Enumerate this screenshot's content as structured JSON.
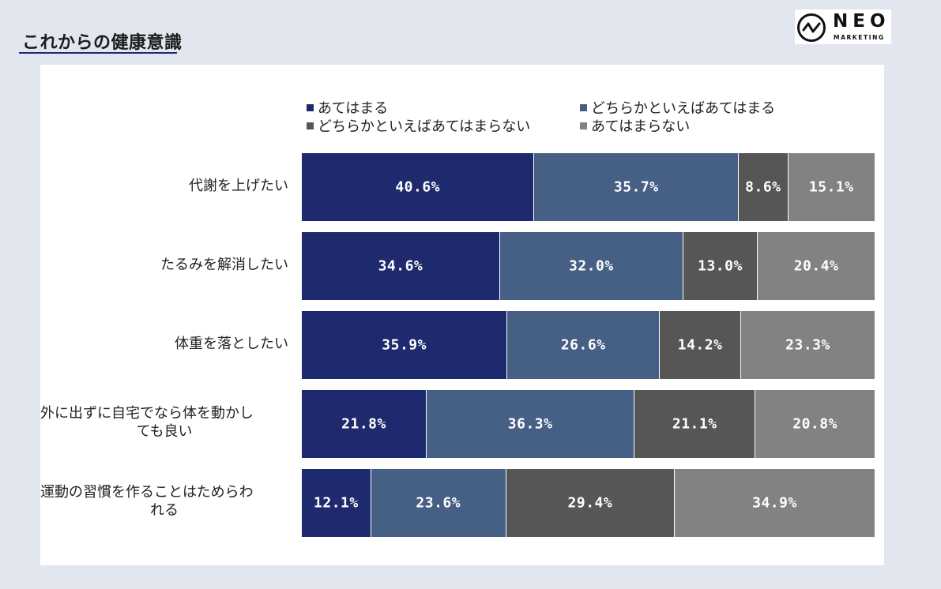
{
  "header": {
    "title": "これからの健康意識",
    "logo_text": "NEO",
    "logo_sub": "MARKETING"
  },
  "colors": {
    "series": [
      "#1f2a6e",
      "#465f85",
      "#565656",
      "#828282"
    ],
    "background": "#e1e6ef",
    "panel": "#ffffff"
  },
  "chart_data": {
    "type": "bar",
    "orientation": "horizontal",
    "stacked": "100%",
    "categories": [
      "代謝を上げたい",
      "たるみを解消したい",
      "体重を落としたい",
      "外に出ずに自宅でなら体を動かしても良い",
      "運動の習慣を作ることはためらわれる"
    ],
    "category_label_lines": [
      [
        "代謝を上げたい"
      ],
      [
        "たるみを解消したい"
      ],
      [
        "体重を落としたい"
      ],
      [
        "外に出ずに自宅でなら体を動かし",
        "ても良い"
      ],
      [
        "運動の習慣を作ることはためらわ",
        "れる"
      ]
    ],
    "series": [
      {
        "name": "あてはまる",
        "values": [
          40.6,
          34.6,
          35.9,
          21.8,
          12.1
        ]
      },
      {
        "name": "どちらかといえばあてはまる",
        "values": [
          35.7,
          32.0,
          26.6,
          36.3,
          23.6
        ]
      },
      {
        "name": "どちらかといえばあてはまらない",
        "values": [
          8.6,
          13.0,
          14.2,
          21.1,
          29.4
        ]
      },
      {
        "name": "あてはまらない",
        "values": [
          15.1,
          20.4,
          23.3,
          20.8,
          34.9
        ]
      }
    ],
    "data_labels": [
      [
        "40.6%",
        "35.7%",
        "8.6%",
        "15.1%"
      ],
      [
        "34.6%",
        "32.0%",
        "13.0%",
        "20.4%"
      ],
      [
        "35.9%",
        "26.6%",
        "14.2%",
        "23.3%"
      ],
      [
        "21.8%",
        "36.3%",
        "21.1%",
        "20.8%"
      ],
      [
        "12.1%",
        "23.6%",
        "29.4%",
        "34.9%"
      ]
    ],
    "legend_position": "top",
    "grid": false
  }
}
